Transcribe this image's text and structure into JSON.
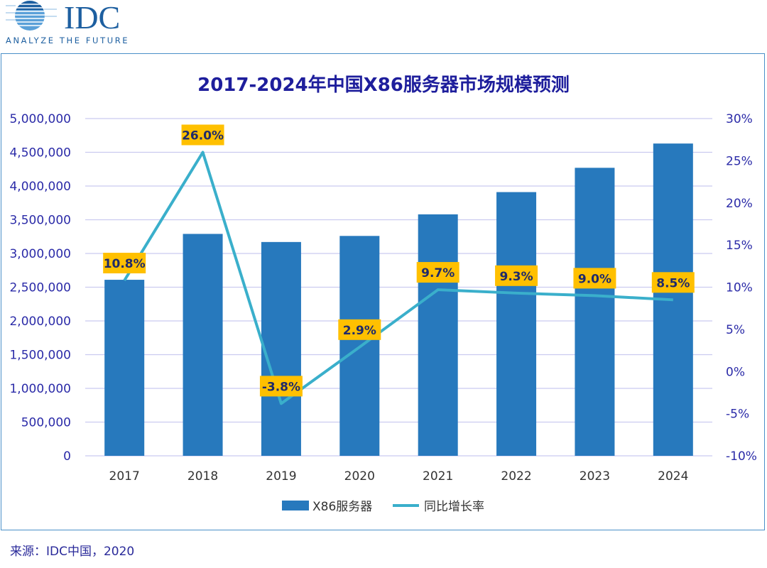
{
  "logo": {
    "text": "IDC",
    "tagline": "ANALYZE THE FUTURE"
  },
  "source": "来源：IDC中国，2020",
  "colors": {
    "bar": "#2779BD",
    "line": "#3AAFCB",
    "label_bg": "#FFC000",
    "text": "#2B2BA8",
    "title": "#1E1E9C",
    "grid": "#CBCBF0"
  },
  "chart_data": {
    "type": "bar+line",
    "title": "2017-2024年中国X86服务器市场规模预测",
    "categories": [
      "2017",
      "2018",
      "2019",
      "2020",
      "2021",
      "2022",
      "2023",
      "2024"
    ],
    "series": [
      {
        "name": "X86服务器",
        "type": "bar",
        "axis": "left",
        "values": [
          2610000,
          3290000,
          3170000,
          3260000,
          3580000,
          3910000,
          4270000,
          4630000
        ]
      },
      {
        "name": "同比增长率",
        "type": "line",
        "axis": "right",
        "values": [
          10.8,
          26.0,
          -3.8,
          2.9,
          9.7,
          9.3,
          9.0,
          8.5
        ],
        "labels": [
          "10.8%",
          "26.0%",
          "-3.8%",
          "2.9%",
          "9.7%",
          "9.3%",
          "9.0%",
          "8.5%"
        ]
      }
    ],
    "ylim_left": [
      0,
      5000000
    ],
    "yticks_left": [
      "0",
      "500,000",
      "1,000,000",
      "1,500,000",
      "2,000,000",
      "2,500,000",
      "3,000,000",
      "3,500,000",
      "4,000,000",
      "4,500,000",
      "5,000,000"
    ],
    "ylim_right": [
      -10,
      30
    ],
    "yticks_right": [
      "-10%",
      "-5%",
      "0%",
      "5%",
      "10%",
      "15%",
      "20%",
      "25%",
      "30%"
    ],
    "grid": true,
    "legend": "bottom"
  }
}
